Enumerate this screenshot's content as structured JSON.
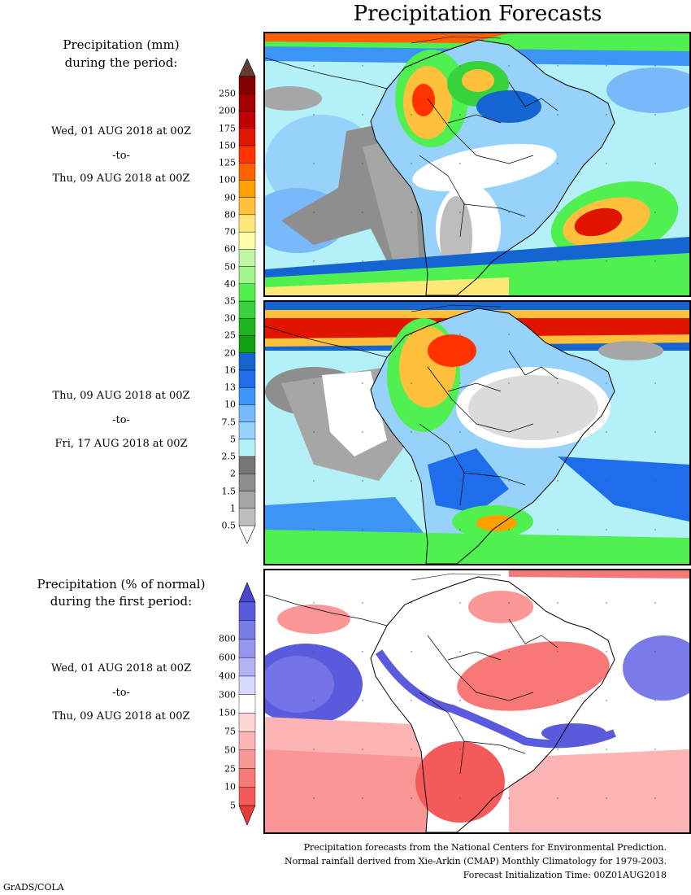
{
  "title": "Precipitation Forecasts",
  "panel1": {
    "header_line1": "Precipitation (mm)",
    "header_line2": "during the period:",
    "start": "Wed, 01 AUG 2018 at 00Z",
    "to": "-to-",
    "end": "Thu, 09 AUG 2018 at 00Z"
  },
  "panel2": {
    "start": "Thu, 09 AUG 2018 at 00Z",
    "to": "-to-",
    "end": "Fri, 17 AUG 2018 at 00Z"
  },
  "panel3": {
    "header_line1": "Precipitation (% of normal)",
    "header_line2": "during the first period:",
    "start": "Wed, 01 AUG 2018 at 00Z",
    "to": "-to-",
    "end": "Thu, 09 AUG 2018 at 00Z"
  },
  "precip_scale": {
    "labels": [
      "0.5",
      "1",
      "1.5",
      "2",
      "2.5",
      "5",
      "7.5",
      "10",
      "13",
      "16",
      "20",
      "25",
      "30",
      "35",
      "40",
      "50",
      "60",
      "70",
      "80",
      "90",
      "100",
      "125",
      "150",
      "175",
      "200",
      "250"
    ],
    "colors": [
      "#bdbdbd",
      "#a6a6a6",
      "#8e8e8e",
      "#767676",
      "#b3f0f7",
      "#96d2fa",
      "#78b9fa",
      "#3c95f5",
      "#1e6eeb",
      "#1464d2",
      "#0fa00f",
      "#1eb41e",
      "#37d23c",
      "#50f050",
      "#a0f58c",
      "#c0f5a6",
      "#ffffaa",
      "#ffe878",
      "#ffc03c",
      "#ffa000",
      "#ff6000",
      "#ff3200",
      "#e11400",
      "#c00000",
      "#a50000",
      "#870000"
    ],
    "over_color": "#643c32",
    "under_color": "#ffffff"
  },
  "percent_scale": {
    "labels": [
      "5",
      "10",
      "25",
      "50",
      "75",
      "150",
      "300",
      "400",
      "600",
      "800"
    ],
    "colors": [
      "#f55a5a",
      "#f87878",
      "#fa9696",
      "#fcb4b4",
      "#fed6d6",
      "#ffffff",
      "#d8d8fc",
      "#b4b4f5",
      "#9696ef",
      "#7a7ae8",
      "#5a5adc"
    ],
    "over_color": "#4646d2",
    "under_color": "#e63c3c"
  },
  "footer": {
    "line1": "Precipitation forecasts from the National Centers for Environmental Prediction.",
    "line2": "Normal rainfall derived from Xie-Arkin (CMAP) Monthly Climatology for 1979-2003.",
    "line3": "Forecast Initialization Time: 00Z01AUG2018",
    "credit": "GrADS/COLA"
  }
}
